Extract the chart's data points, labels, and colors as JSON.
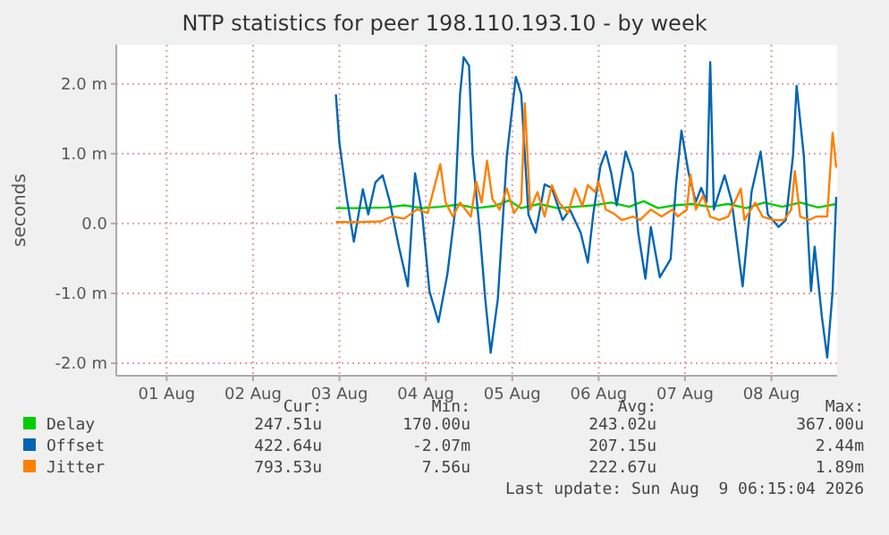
{
  "chart_data": {
    "type": "line",
    "title": "NTP statistics for peer 198.110.193.10 - by week",
    "ylabel": "seconds",
    "xlim": [
      "2026-07-31T22:00",
      "2026-08-09T06:15"
    ],
    "xticks": [
      {
        "value": "2026-08-01T12:00",
        "label": "01 Aug"
      },
      {
        "value": "2026-08-02T12:00",
        "label": "02 Aug"
      },
      {
        "value": "2026-08-03T12:00",
        "label": "03 Aug"
      },
      {
        "value": "2026-08-04T12:00",
        "label": "04 Aug"
      },
      {
        "value": "2026-08-05T12:00",
        "label": "05 Aug"
      },
      {
        "value": "2026-08-06T12:00",
        "label": "06 Aug"
      },
      {
        "value": "2026-08-07T12:00",
        "label": "07 Aug"
      },
      {
        "value": "2026-08-08T12:00",
        "label": "08 Aug"
      }
    ],
    "ylim": [
      -2.18,
      2.56
    ],
    "yticks": [
      {
        "value": -2,
        "label": "-2.0 m"
      },
      {
        "value": -1,
        "label": "-1.0 m"
      },
      {
        "value": 0,
        "label": "0.0"
      },
      {
        "value": 1,
        "label": "1.0 m"
      },
      {
        "value": 2,
        "label": "2.0 m"
      }
    ],
    "grid": true,
    "legend": "bottom",
    "series": [
      {
        "name": "Delay",
        "color": "#00cc00",
        "x": [
          "2026-08-03T11:00",
          "2026-08-03T17:30",
          "2026-08-04T01:00",
          "2026-08-04T06:00",
          "2026-08-04T11:00",
          "2026-08-04T16:00",
          "2026-08-04T21:00",
          "2026-08-05T02:00",
          "2026-08-05T07:00",
          "2026-08-05T11:00",
          "2026-08-05T14:30",
          "2026-08-05T19:30",
          "2026-08-06T00:30",
          "2026-08-06T05:30",
          "2026-08-06T10:30",
          "2026-08-06T15:30",
          "2026-08-06T20:30",
          "2026-08-07T00:30",
          "2026-08-07T04:30",
          "2026-08-07T09:00",
          "2026-08-07T14:00",
          "2026-08-07T19:00",
          "2026-08-08T00:00",
          "2026-08-08T05:00",
          "2026-08-08T10:00",
          "2026-08-08T15:00",
          "2026-08-08T20:00",
          "2026-08-09T01:00",
          "2026-08-09T06:00"
        ],
        "values": [
          0.22,
          0.22,
          0.23,
          0.26,
          0.22,
          0.24,
          0.27,
          0.22,
          0.25,
          0.33,
          0.22,
          0.28,
          0.22,
          0.24,
          0.26,
          0.3,
          0.24,
          0.32,
          0.22,
          0.26,
          0.28,
          0.24,
          0.28,
          0.22,
          0.3,
          0.24,
          0.3,
          0.23,
          0.28
        ]
      },
      {
        "name": "Offset",
        "color": "#0066b3",
        "x": [
          "2026-08-03T11:00",
          "2026-08-03T12:00",
          "2026-08-03T14:00",
          "2026-08-03T16:00",
          "2026-08-03T18:30",
          "2026-08-03T20:00",
          "2026-08-03T22:00",
          "2026-08-04T00:00",
          "2026-08-04T02:00",
          "2026-08-04T04:30",
          "2026-08-04T07:00",
          "2026-08-04T09:00",
          "2026-08-04T11:00",
          "2026-08-04T13:00",
          "2026-08-04T15:30",
          "2026-08-04T18:00",
          "2026-08-04T20:00",
          "2026-08-04T21:30",
          "2026-08-04T22:30",
          "2026-08-05T00:00",
          "2026-08-05T01:00",
          "2026-08-05T03:00",
          "2026-08-05T04:30",
          "2026-08-05T06:00",
          "2026-08-05T08:00",
          "2026-08-05T10:30",
          "2026-08-05T13:00",
          "2026-08-05T14:30",
          "2026-08-05T16:30",
          "2026-08-05T18:30",
          "2026-08-05T21:00",
          "2026-08-05T23:00",
          "2026-08-06T02:00",
          "2026-08-06T04:00",
          "2026-08-06T07:00",
          "2026-08-06T09:00",
          "2026-08-06T10:30",
          "2026-08-06T12:30",
          "2026-08-06T14:00",
          "2026-08-06T15:30",
          "2026-08-06T17:00",
          "2026-08-06T19:30",
          "2026-08-06T21:30",
          "2026-08-06T23:00",
          "2026-08-07T01:00",
          "2026-08-07T02:30",
          "2026-08-07T05:00",
          "2026-08-07T08:00",
          "2026-08-07T09:30",
          "2026-08-07T11:00",
          "2026-08-07T13:00",
          "2026-08-07T15:00",
          "2026-08-07T16:30",
          "2026-08-07T18:00",
          "2026-08-07T19:00",
          "2026-08-07T20:00",
          "2026-08-07T23:00",
          "2026-08-08T01:00",
          "2026-08-08T04:00",
          "2026-08-08T06:30",
          "2026-08-08T09:00",
          "2026-08-08T11:00",
          "2026-08-08T14:00",
          "2026-08-08T16:00",
          "2026-08-08T18:00",
          "2026-08-08T19:00",
          "2026-08-08T21:00",
          "2026-08-08T23:00",
          "2026-08-09T00:00",
          "2026-08-09T02:00",
          "2026-08-09T03:30",
          "2026-08-09T05:00",
          "2026-08-09T06:00"
        ],
        "values": [
          1.85,
          1.15,
          0.38,
          -0.26,
          0.49,
          0.13,
          0.59,
          0.69,
          0.31,
          -0.33,
          -0.9,
          0.72,
          0.13,
          -0.97,
          -1.41,
          -0.72,
          0.13,
          1.85,
          2.38,
          2.26,
          0.97,
          -0.13,
          -1.08,
          -1.85,
          -1.08,
          0.97,
          2.1,
          1.85,
          0.13,
          -0.13,
          0.56,
          0.51,
          0.05,
          0.2,
          -0.13,
          -0.56,
          0.13,
          0.82,
          1.03,
          0.72,
          0.26,
          1.03,
          0.72,
          -0.13,
          -0.79,
          -0.05,
          -0.77,
          -0.51,
          0.56,
          1.33,
          0.72,
          0.31,
          0.51,
          0.31,
          2.31,
          0.2,
          0.69,
          0.31,
          -0.9,
          0.46,
          1.03,
          0.13,
          -0.05,
          0.05,
          0.97,
          1.97,
          0.97,
          -0.97,
          -0.33,
          -1.33,
          -1.92,
          -0.97,
          0.38
        ]
      },
      {
        "name": "Jitter",
        "color": "#ff8000",
        "x": [
          "2026-08-03T11:00",
          "2026-08-03T17:30",
          "2026-08-03T23:30",
          "2026-08-04T02:30",
          "2026-08-04T06:00",
          "2026-08-04T09:30",
          "2026-08-04T12:30",
          "2026-08-04T14:30",
          "2026-08-04T16:00",
          "2026-08-04T17:30",
          "2026-08-04T19:30",
          "2026-08-04T21:30",
          "2026-08-05T00:30",
          "2026-08-05T02:00",
          "2026-08-05T03:30",
          "2026-08-05T05:00",
          "2026-08-05T06:30",
          "2026-08-05T08:30",
          "2026-08-05T10:30",
          "2026-08-05T12:30",
          "2026-08-05T14:30",
          "2026-08-05T15:30",
          "2026-08-05T17:00",
          "2026-08-05T19:00",
          "2026-08-05T21:00",
          "2026-08-05T23:00",
          "2026-08-06T01:00",
          "2026-08-06T03:30",
          "2026-08-06T05:30",
          "2026-08-06T07:30",
          "2026-08-06T09:00",
          "2026-08-06T11:00",
          "2026-08-06T12:00",
          "2026-08-06T14:00",
          "2026-08-06T16:00",
          "2026-08-06T18:30",
          "2026-08-06T21:30",
          "2026-08-06T23:30",
          "2026-08-07T02:30",
          "2026-08-07T05:30",
          "2026-08-07T08:30",
          "2026-08-07T10:00",
          "2026-08-07T12:30",
          "2026-08-07T13:30",
          "2026-08-07T15:00",
          "2026-08-07T17:00",
          "2026-08-07T19:00",
          "2026-08-07T21:30",
          "2026-08-08T00:00",
          "2026-08-08T03:30",
          "2026-08-08T04:30",
          "2026-08-08T07:30",
          "2026-08-08T09:30",
          "2026-08-08T12:30",
          "2026-08-08T15:30",
          "2026-08-08T17:30",
          "2026-08-08T18:30",
          "2026-08-08T20:00",
          "2026-08-08T22:30",
          "2026-08-09T00:30",
          "2026-08-09T03:30",
          "2026-08-09T05:00",
          "2026-08-09T06:00"
        ],
        "values": [
          0.02,
          0.02,
          0.03,
          0.1,
          0.07,
          0.2,
          0.15,
          0.55,
          0.85,
          0.3,
          0.1,
          0.3,
          0.1,
          0.6,
          0.3,
          0.9,
          0.35,
          0.2,
          0.5,
          0.15,
          0.3,
          1.72,
          0.2,
          0.45,
          0.1,
          0.55,
          0.3,
          0.15,
          0.5,
          0.25,
          0.55,
          0.45,
          0.6,
          0.2,
          0.15,
          0.05,
          0.1,
          0.05,
          0.2,
          0.1,
          0.2,
          0.1,
          0.2,
          0.7,
          0.2,
          0.4,
          0.1,
          0.05,
          0.1,
          0.5,
          0.05,
          0.3,
          0.1,
          0.05,
          0.05,
          0.2,
          0.75,
          0.1,
          0.05,
          0.1,
          0.1,
          1.3,
          0.8
        ]
      }
    ],
    "annotations": [
      "Cur:",
      "Min:",
      "Avg:",
      "Max:",
      "247.51u",
      "170.00u",
      "243.02u",
      "367.00u",
      "422.64u",
      "-2.07m",
      "207.15u",
      "2.44m",
      "793.53u",
      "7.56u",
      "222.67u",
      "1.89m",
      "Last update: Sun Aug  9 06:15:04 2026"
    ]
  }
}
